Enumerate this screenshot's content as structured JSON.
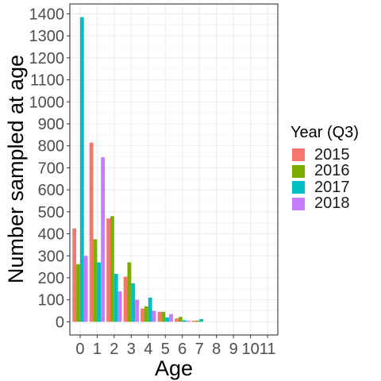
{
  "chart_data": {
    "type": "bar",
    "xlabel": "Age",
    "ylabel": "Number sampled at age",
    "categories": [
      0,
      1,
      2,
      3,
      4,
      5,
      6,
      7,
      8,
      9,
      10,
      11
    ],
    "x_ticks": [
      "0",
      "1",
      "2",
      "3",
      "4",
      "5",
      "6",
      "7",
      "8",
      "9",
      "10",
      "11"
    ],
    "y_ticks": [
      0,
      100,
      200,
      300,
      400,
      500,
      600,
      700,
      800,
      900,
      1000,
      1100,
      1200,
      1300,
      1400
    ],
    "ylim": [
      -60,
      1445
    ],
    "xlim": [
      -0.6,
      11.6
    ],
    "grid": true,
    "legend_position": "right",
    "legend_title": "Year (Q3)",
    "series": [
      {
        "name": "2015",
        "color": "#F8766D",
        "values": [
          425,
          815,
          470,
          205,
          60,
          45,
          15,
          5,
          0,
          0,
          0,
          0
        ]
      },
      {
        "name": "2016",
        "color": "#7CAE00",
        "values": [
          262,
          375,
          480,
          270,
          70,
          45,
          22,
          5,
          0,
          0,
          0,
          0
        ]
      },
      {
        "name": "2017",
        "color": "#00BFC4",
        "values": [
          1385,
          270,
          218,
          175,
          110,
          20,
          7,
          12,
          0,
          0,
          0,
          0
        ]
      },
      {
        "name": "2018",
        "color": "#C77CFF",
        "values": [
          300,
          748,
          138,
          100,
          50,
          35,
          5,
          0,
          0,
          0,
          0,
          0
        ]
      }
    ]
  }
}
